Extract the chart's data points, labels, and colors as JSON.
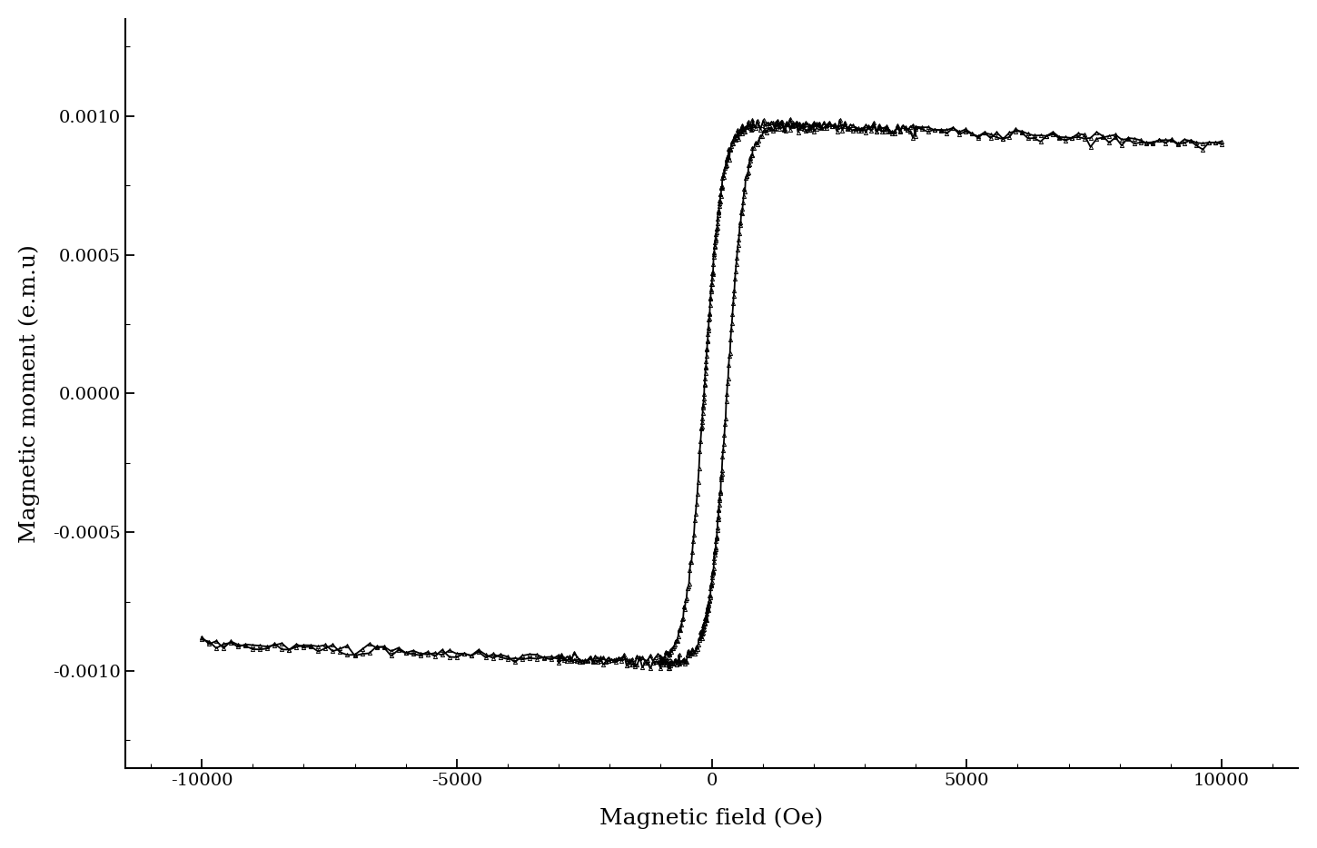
{
  "title": "",
  "xlabel": "Magnetic field (Oe)",
  "ylabel": "Magnetic moment (e.m.u)",
  "xlim": [
    -11500,
    11500
  ],
  "ylim": [
    -0.00135,
    0.00135
  ],
  "xticks": [
    -10000,
    -5000,
    0,
    5000,
    10000
  ],
  "yticks": [
    -0.001,
    -0.0005,
    0.0,
    0.0005,
    0.001
  ],
  "line_color": "#000000",
  "background_color": "#ffffff",
  "Ms": 0.00098,
  "Hc1": 300,
  "Hc2": 150,
  "sharpness": 350,
  "dia_slope": -8e-09,
  "noise_amp": 1e-05,
  "marker_size": 3.0,
  "linewidth": 1.3,
  "xlabel_fontsize": 18,
  "ylabel_fontsize": 18,
  "tick_fontsize": 14,
  "n_points_flat": 60,
  "n_points_trans": 80
}
